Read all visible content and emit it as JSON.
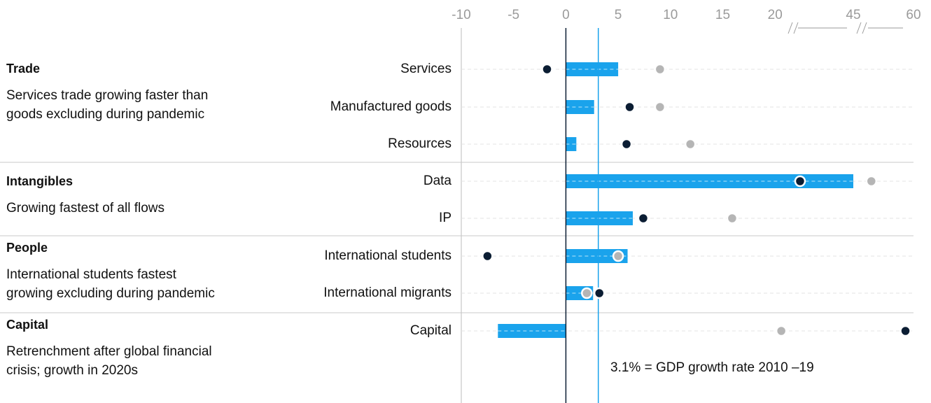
{
  "chart_data": {
    "type": "dot-bar",
    "groups": [
      {
        "title": "Trade",
        "lines": [
          "Services trade growing faster than",
          "goods excluding during pandemic"
        ],
        "categories": [
          "Services",
          "Manufactured goods",
          "Resources"
        ]
      },
      {
        "title": "Intangibles",
        "lines": [
          "Growing fastest of all flows"
        ],
        "categories": [
          "Data",
          "IP"
        ]
      },
      {
        "title": "People",
        "lines": [
          "International students fastest",
          "growing excluding during pandemic"
        ],
        "categories": [
          "International students",
          "International migrants"
        ]
      },
      {
        "title": "Capital",
        "lines": [
          "Retrenchment after global financial",
          "crisis; growth in 2020s"
        ],
        "categories": [
          "Capital"
        ]
      }
    ],
    "series": [
      {
        "color": "#1aa3ec",
        "values": [
          5,
          2.7,
          1.0,
          45,
          6.4,
          5.9,
          2.6,
          -6.5
        ]
      },
      {
        "color": "#0b1d33",
        "values": [
          -1.8,
          6.1,
          5.8,
          28,
          7.4,
          -7.5,
          3.2,
          58
        ]
      },
      {
        "color": "#b5b5b5",
        "values": [
          9,
          9,
          11.9,
          49.5,
          15.9,
          5,
          2,
          22
        ]
      }
    ],
    "xlim": [
      -10,
      60
    ],
    "xticks": [
      -10,
      -5,
      0,
      5,
      10,
      15,
      20,
      45,
      60
    ],
    "reference": {
      "value": 3.1,
      "label": "3.1% = GDP growth rate 2010 –19",
      "color": "#1aa3ec"
    }
  }
}
